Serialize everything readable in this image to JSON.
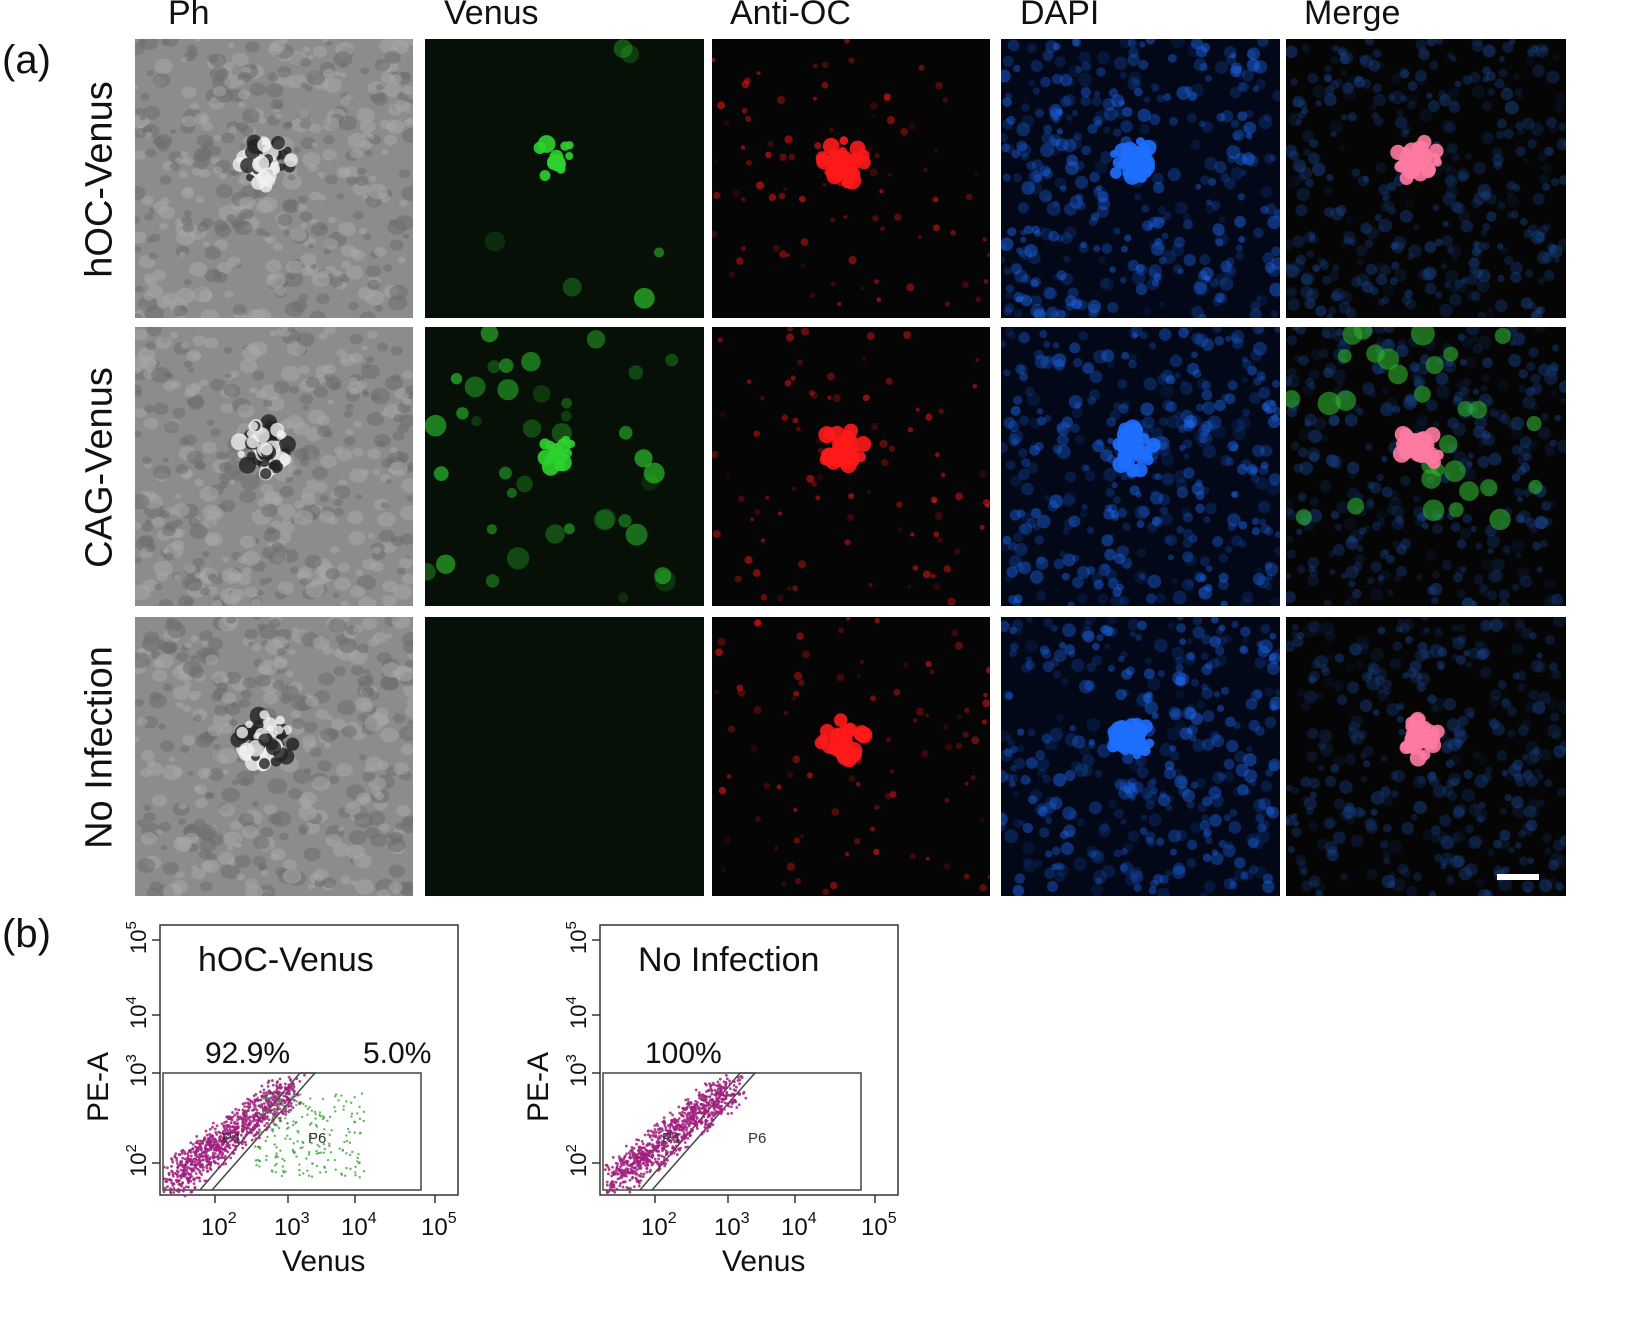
{
  "panel_labels": {
    "a": "(a)",
    "b": "(b)"
  },
  "columns": [
    "Ph",
    "Venus",
    "Anti-OC",
    "DAPI",
    "Merge"
  ],
  "rows": [
    "hOC-Venus",
    "CAG-Venus",
    "No Infection"
  ],
  "channel_colors": {
    "Ph": "#8a8a8a",
    "Venus": "#2fd12f",
    "Anti-OC": "#ff1a1a",
    "DAPI": "#1f6fff",
    "Merge": "#ff6090"
  },
  "flow_plots": [
    {
      "title": "hOC-Venus",
      "ylabel": "PE-A",
      "xlabel": "Venus",
      "gate_percent_left": "92.9%",
      "gate_percent_right": "5.0%",
      "gate_names": [
        "P4",
        "P6"
      ],
      "x_ticks": [
        "10",
        "10",
        "10",
        "10"
      ],
      "x_tick_exps": [
        "2",
        "3",
        "4",
        "5"
      ],
      "y_ticks": [
        "10",
        "10",
        "10",
        "10"
      ],
      "y_tick_exps": [
        "2",
        "3",
        "4",
        "5"
      ],
      "colors": {
        "p4": "#a0207f",
        "p6": "#3aa63a"
      }
    },
    {
      "title": "No Infection",
      "ylabel": "PE-A",
      "xlabel": "Venus",
      "gate_percent_left": "100%",
      "gate_percent_right": "",
      "gate_names": [
        "P4",
        "P6"
      ],
      "x_ticks": [
        "10",
        "10",
        "10",
        "10"
      ],
      "x_tick_exps": [
        "2",
        "3",
        "4",
        "5"
      ],
      "y_ticks": [
        "10",
        "10",
        "10",
        "10"
      ],
      "y_tick_exps": [
        "2",
        "3",
        "4",
        "5"
      ],
      "colors": {
        "p4": "#a0207f",
        "p6": "#3aa63a"
      }
    }
  ]
}
